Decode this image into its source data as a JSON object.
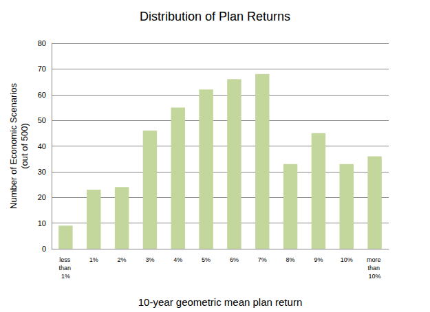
{
  "chart_data": {
    "type": "bar",
    "title": "Distribution of Plan Returns",
    "x_label": "10-year geometric mean plan return",
    "y_label": "Number of Economic Scenarios\n(out of 500)",
    "categories": [
      "less than 1%",
      "1%",
      "2%",
      "3%",
      "4%",
      "5%",
      "6%",
      "7%",
      "8%",
      "9%",
      "10%",
      "more than 10%"
    ],
    "values": [
      9,
      23,
      24,
      46,
      55,
      62,
      66,
      68,
      33,
      45,
      33,
      36
    ],
    "color": "#c3d69b",
    "ylim": [
      0,
      80
    ],
    "yticks": [
      0,
      10,
      20,
      30,
      40,
      50,
      60,
      70,
      80
    ],
    "grid": true
  }
}
